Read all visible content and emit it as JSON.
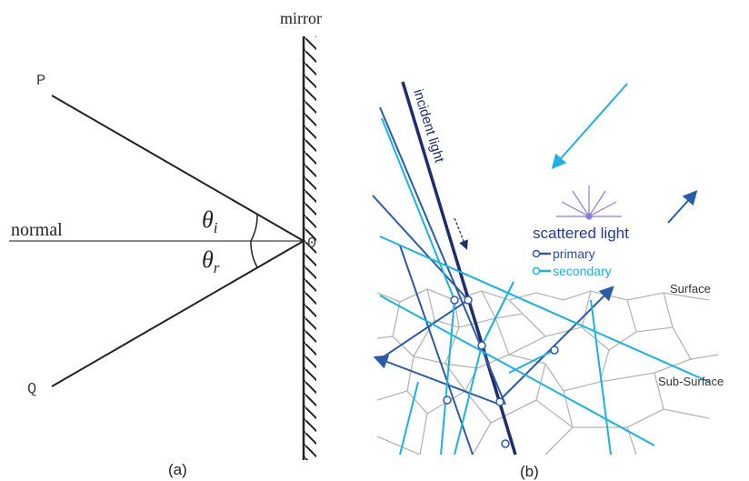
{
  "panel_a": {
    "mirror": "mirror",
    "p": "P",
    "q": "Q",
    "normal": "normal",
    "origin": "0",
    "theta_i": {
      "symbol": "θ",
      "sub": "i"
    },
    "theta_r": {
      "symbol": "θ",
      "sub": "r"
    },
    "caption": "(a)"
  },
  "panel_b": {
    "incident": "incident light",
    "scattered": "scattered light",
    "primary": "primary",
    "secondary": "secondary",
    "surface": "Surface",
    "subsurface": "Sub-Surface",
    "caption": "(b)"
  }
}
